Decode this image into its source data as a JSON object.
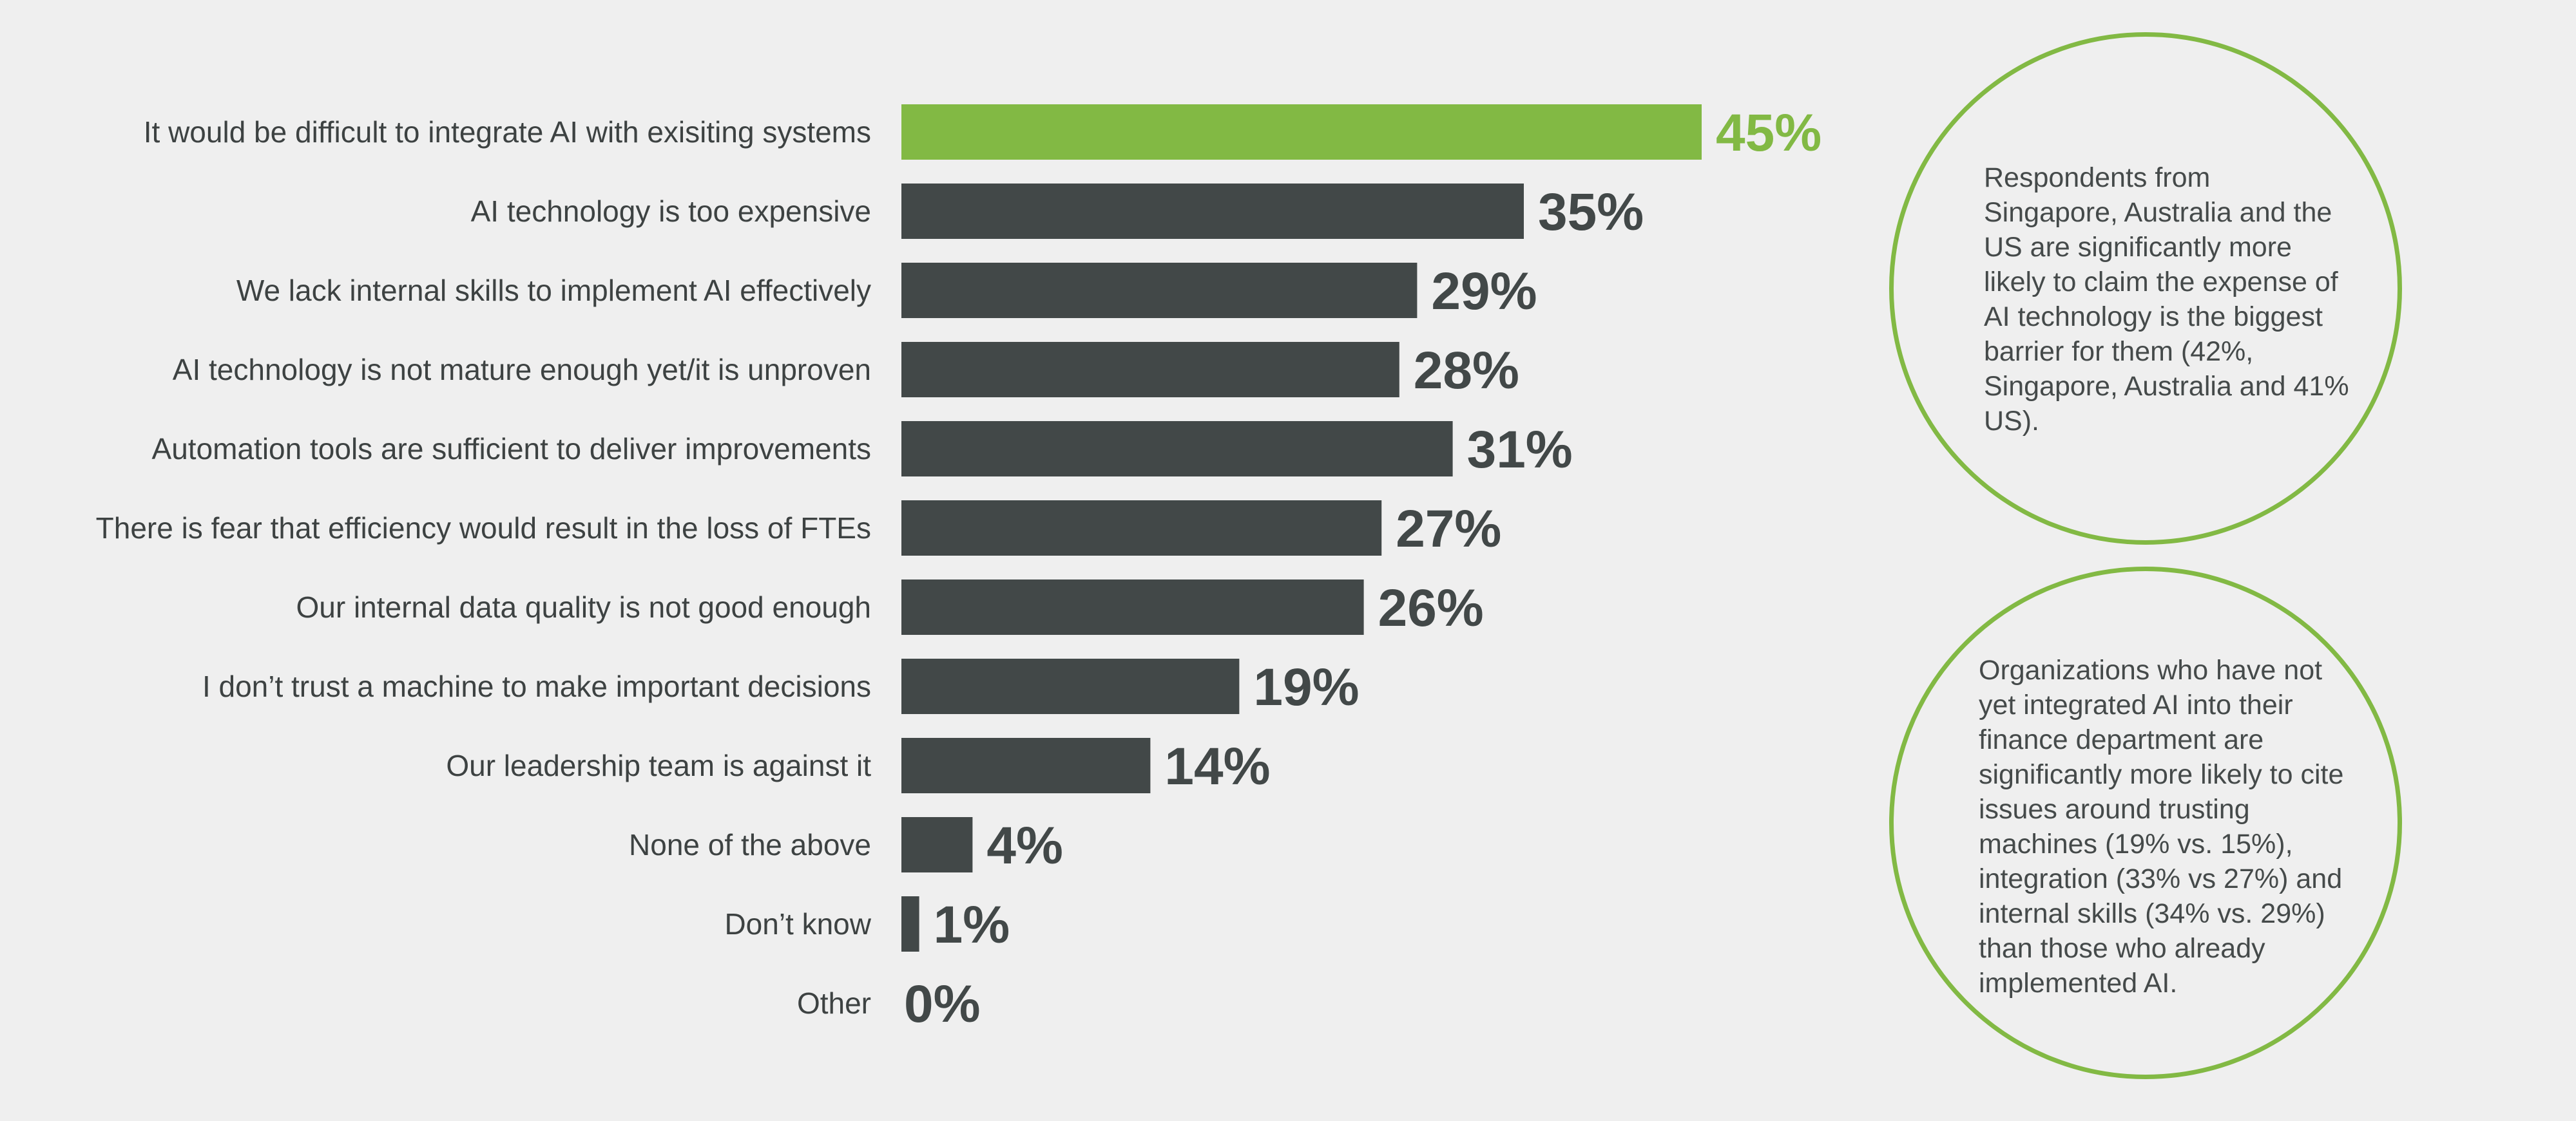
{
  "chart_data": {
    "type": "bar",
    "orientation": "horizontal",
    "categories": [
      "It would be difficult to integrate AI with exisiting systems",
      "AI technology is too expensive",
      "We lack internal skills to implement AI effectively",
      "AI technology is not mature enough yet/it is unproven",
      "Automation tools are sufficient to deliver improvements",
      "There is fear that efficiency would result in the loss of FTEs",
      "Our internal data quality is not good enough",
      "I don’t trust a machine to make important decisions",
      "Our leadership team is against it",
      "None of the above",
      "Don’t know",
      "Other"
    ],
    "values": [
      45,
      35,
      29,
      28,
      31,
      27,
      26,
      19,
      14,
      4,
      1,
      0
    ],
    "value_labels": [
      "45%",
      "35%",
      "29%",
      "28%",
      "31%",
      "27%",
      "26%",
      "19%",
      "14%",
      "4%",
      "1%",
      "0%"
    ],
    "highlight_index": 0,
    "title": "",
    "xlabel": "",
    "ylabel": "",
    "grid": false,
    "colors": {
      "highlight": "#82b944",
      "bar": "#424848",
      "background": "#efefef"
    }
  },
  "callouts": [
    {
      "text": "Respondents from Singapore, Australia and the US are significantly more likely to claim the expense of AI technology is the biggest barrier for them (42%, Singapore, Australia and 41% US)."
    },
    {
      "text": "Organizations who have not yet integrated AI into their finance department are significantly more likely to cite issues around trusting machines (19% vs. 15%), integration (33% vs 27%) and internal skills (34% vs. 29%) than those who already implemented AI."
    }
  ]
}
